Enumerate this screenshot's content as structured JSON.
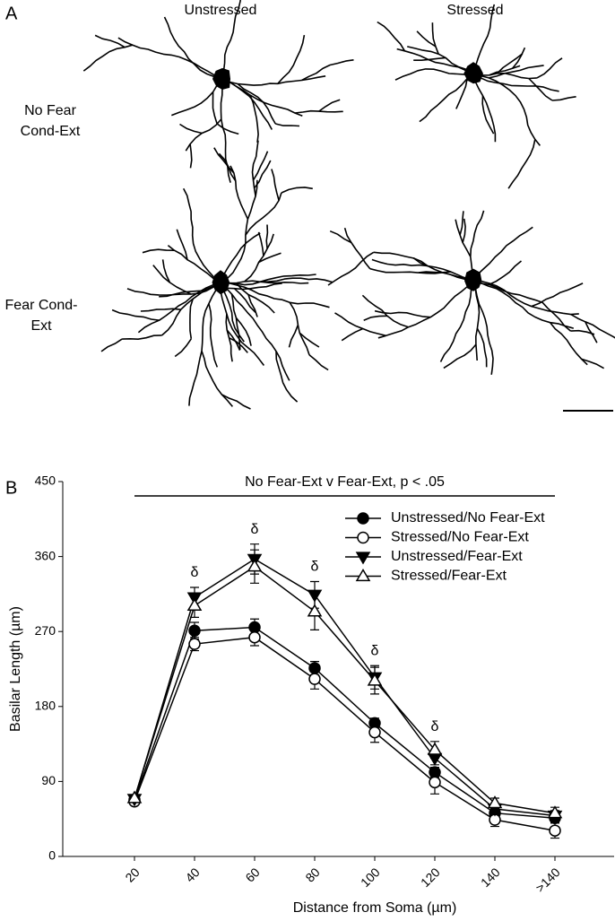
{
  "panel_a": {
    "label": "A",
    "columns": [
      "Unstressed",
      "Stressed"
    ],
    "rows": [
      [
        "No Fear",
        "Cond-Ext"
      ],
      [
        "Fear Cond-",
        "Ext"
      ]
    ]
  },
  "chart_data": {
    "type": "line",
    "panel_label": "B",
    "significance": "No Fear-Ext v Fear-Ext, p < .05",
    "x_label": "Distance from Soma (µm)",
    "y_label": "Basilar Length (µm)",
    "categories": [
      "20",
      "40",
      "60",
      "80",
      "100",
      "120",
      "140",
      ">140"
    ],
    "ylim": [
      0,
      450
    ],
    "yticks": [
      0,
      90,
      180,
      270,
      360,
      450
    ],
    "legend": "top-right",
    "series": [
      {
        "name": "Unstressed/No Fear-Ext",
        "color": "#000000",
        "marker": "filled-circle",
        "values": [
          68,
          271,
          275,
          226,
          160,
          101,
          52,
          46
        ],
        "errors": [
          3,
          10,
          10,
          8,
          6,
          6,
          4,
          5
        ]
      },
      {
        "name": "Stressed/No Fear-Ext",
        "color": "#000000",
        "marker": "open-circle",
        "values": [
          66,
          255,
          263,
          213,
          149,
          89,
          44,
          31
        ],
        "errors": [
          3,
          8,
          10,
          12,
          12,
          14,
          8,
          9
        ]
      },
      {
        "name": "Unstressed/Fear-Ext",
        "color": "#000000",
        "marker": "filled-down-triangle",
        "values": [
          69,
          311,
          357,
          314,
          215,
          118,
          57,
          49
        ],
        "errors": [
          3,
          12,
          18,
          16,
          14,
          8,
          5,
          6
        ]
      },
      {
        "name": "Stressed/Fear-Ext",
        "color": "#000000",
        "marker": "open-up-triangle",
        "values": [
          70,
          301,
          348,
          294,
          211,
          128,
          64,
          52
        ],
        "errors": [
          3,
          14,
          20,
          22,
          16,
          10,
          6,
          7
        ]
      }
    ],
    "annotations": [
      {
        "text": "δ",
        "category": "40"
      },
      {
        "text": "δ",
        "category": "60"
      },
      {
        "text": "δ",
        "category": "80"
      },
      {
        "text": "δ",
        "category": "100"
      },
      {
        "text": "δ",
        "category": "120"
      }
    ]
  }
}
